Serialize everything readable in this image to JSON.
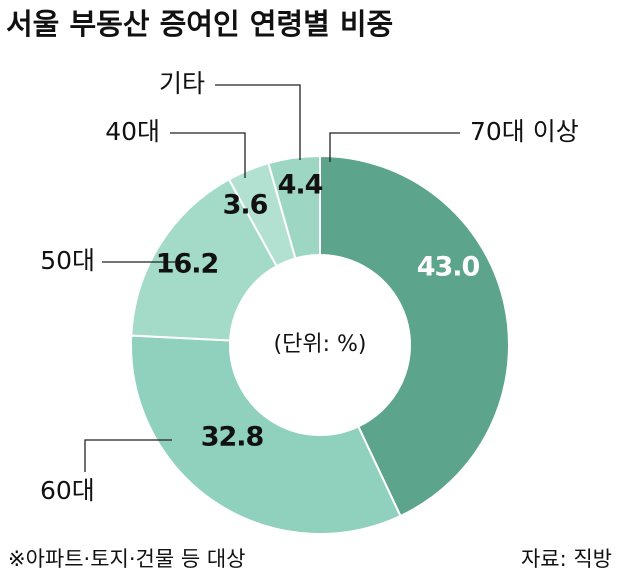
{
  "chart_data": {
    "type": "donut",
    "title": "서울 부동산 증여인 연령별 비중",
    "center_label": "(단위: %)",
    "categories": [
      "70대 이상",
      "60대",
      "50대",
      "40대",
      "기타"
    ],
    "values": [
      43.0,
      32.8,
      16.2,
      3.6,
      4.4
    ],
    "value_labels": [
      "43.0",
      "32.8",
      "16.2",
      "3.6",
      "4.4"
    ],
    "colors": [
      "#5ca48c",
      "#8fd1bc",
      "#a3dbc8",
      "#b2e1d2",
      "#9dd7c4"
    ],
    "footnote": "※아파트·토지·건물 등 대상",
    "source": "자료: 직방"
  }
}
